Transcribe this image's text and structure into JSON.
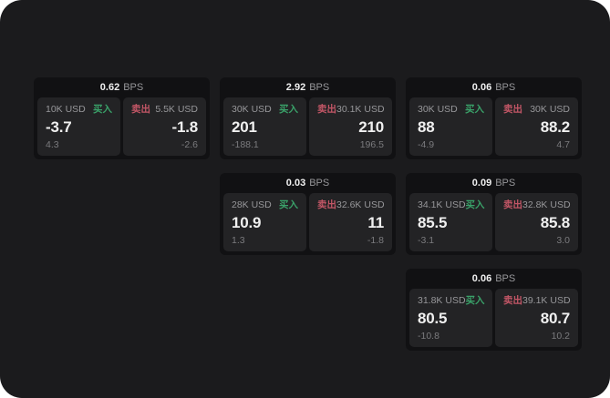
{
  "theme": {
    "page_outside": "#ffffff",
    "app_bg": "#1b1b1d",
    "card_bg": "#111113",
    "panel_bg": "#232325",
    "text_primary": "#f0f0f0",
    "text_secondary": "#97979a",
    "text_tertiary": "#7b7b7e",
    "buy_green": "#3aa169",
    "sell_red": "#c25666"
  },
  "labels": {
    "bps_unit": "BPS",
    "buy": "买入",
    "sell": "卖出"
  },
  "cards": [
    {
      "bps": "0.62",
      "buy": {
        "size": "10K USD",
        "value": "-3.7",
        "sub": "4.3"
      },
      "sell": {
        "size": "5.5K USD",
        "value": "-1.8",
        "sub": "-2.6"
      }
    },
    {
      "bps": "2.92",
      "buy": {
        "size": "30K USD",
        "value": "201",
        "sub": "-188.1"
      },
      "sell": {
        "size": "30.1K USD",
        "value": "210",
        "sub": "196.5"
      }
    },
    {
      "bps": "0.06",
      "buy": {
        "size": "30K USD",
        "value": "88",
        "sub": "-4.9"
      },
      "sell": {
        "size": "30K USD",
        "value": "88.2",
        "sub": "4.7"
      }
    },
    {
      "bps": "0.03",
      "buy": {
        "size": "28K USD",
        "value": "10.9",
        "sub": "1.3"
      },
      "sell": {
        "size": "32.6K USD",
        "value": "11",
        "sub": "-1.8"
      }
    },
    {
      "bps": "0.09",
      "buy": {
        "size": "34.1K USD",
        "value": "85.5",
        "sub": "-3.1"
      },
      "sell": {
        "size": "32.8K USD",
        "value": "85.8",
        "sub": "3.0"
      }
    },
    {
      "bps": "0.06",
      "buy": {
        "size": "31.8K USD",
        "value": "80.5",
        "sub": "-10.8"
      },
      "sell": {
        "size": "39.1K USD",
        "value": "80.7",
        "sub": "10.2"
      }
    }
  ]
}
